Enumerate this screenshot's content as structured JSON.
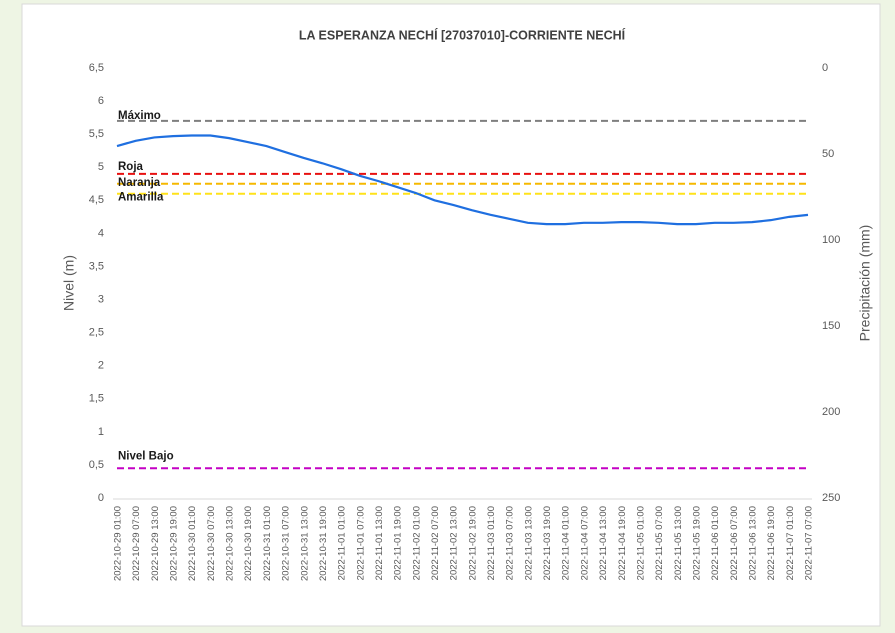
{
  "chart_data": {
    "type": "line",
    "title": "LA ESPERANZA NECHÍ [27037010]-CORRIENTE NECHÍ",
    "ylabel": "Nivel (m)",
    "y2label": "Precipitación (mm)",
    "categories": [
      "2022-10-29 01:00",
      "2022-10-29 07:00",
      "2022-10-29 13:00",
      "2022-10-29 19:00",
      "2022-10-30 01:00",
      "2022-10-30 07:00",
      "2022-10-30 13:00",
      "2022-10-30 19:00",
      "2022-10-31 01:00",
      "2022-10-31 07:00",
      "2022-10-31 13:00",
      "2022-10-31 19:00",
      "2022-11-01 01:00",
      "2022-11-01 07:00",
      "2022-11-01 13:00",
      "2022-11-01 19:00",
      "2022-11-02 01:00",
      "2022-11-02 07:00",
      "2022-11-02 13:00",
      "2022-11-02 19:00",
      "2022-11-03 01:00",
      "2022-11-03 07:00",
      "2022-11-03 13:00",
      "2022-11-03 19:00",
      "2022-11-04 01:00",
      "2022-11-04 07:00",
      "2022-11-04 13:00",
      "2022-11-04 19:00",
      "2022-11-05 01:00",
      "2022-11-05 07:00",
      "2022-11-05 13:00",
      "2022-11-05 19:00",
      "2022-11-06 01:00",
      "2022-11-06 07:00",
      "2022-11-06 13:00",
      "2022-11-06 19:00",
      "2022-11-07 01:00",
      "2022-11-07 07:00"
    ],
    "values": [
      5.32,
      5.4,
      5.45,
      5.47,
      5.48,
      5.48,
      5.44,
      5.38,
      5.32,
      5.23,
      5.14,
      5.06,
      4.97,
      4.87,
      4.79,
      4.7,
      4.61,
      4.5,
      4.43,
      4.35,
      4.28,
      4.22,
      4.16,
      4.14,
      4.14,
      4.16,
      4.16,
      4.17,
      4.17,
      4.16,
      4.14,
      4.14,
      4.16,
      4.16,
      4.17,
      4.2,
      4.25,
      4.28
    ],
    "color": "#1f6fe0",
    "thresholds": [
      {
        "name": "Máximo",
        "value": 5.7,
        "color": "#7f7f7f"
      },
      {
        "name": "Roja",
        "value": 4.9,
        "color": "#e81010"
      },
      {
        "name": "Naranja",
        "value": 4.75,
        "color": "#f5b800"
      },
      {
        "name": "Amarilla",
        "value": 4.6,
        "color": "#ffe21a"
      },
      {
        "name": "Nivel Bajo",
        "value": 0.45,
        "color": "#c400c4"
      }
    ],
    "ylim": [
      0,
      6.5
    ],
    "yticks": [
      0,
      {
        "value": 0.5,
        "label": "0,5"
      },
      1,
      {
        "value": 1.5,
        "label": "1,5"
      },
      2,
      {
        "value": 2.5,
        "label": "2,5"
      },
      3,
      {
        "value": 3.5,
        "label": "3,5"
      },
      4,
      {
        "value": 4.5,
        "label": "4,5"
      },
      5,
      {
        "value": 5.5,
        "label": "5,5"
      },
      6,
      {
        "value": 6.5,
        "label": "6,5"
      }
    ],
    "y2lim": [
      250,
      0
    ],
    "y2ticks": [
      0,
      50,
      100,
      150,
      200,
      250
    ]
  }
}
